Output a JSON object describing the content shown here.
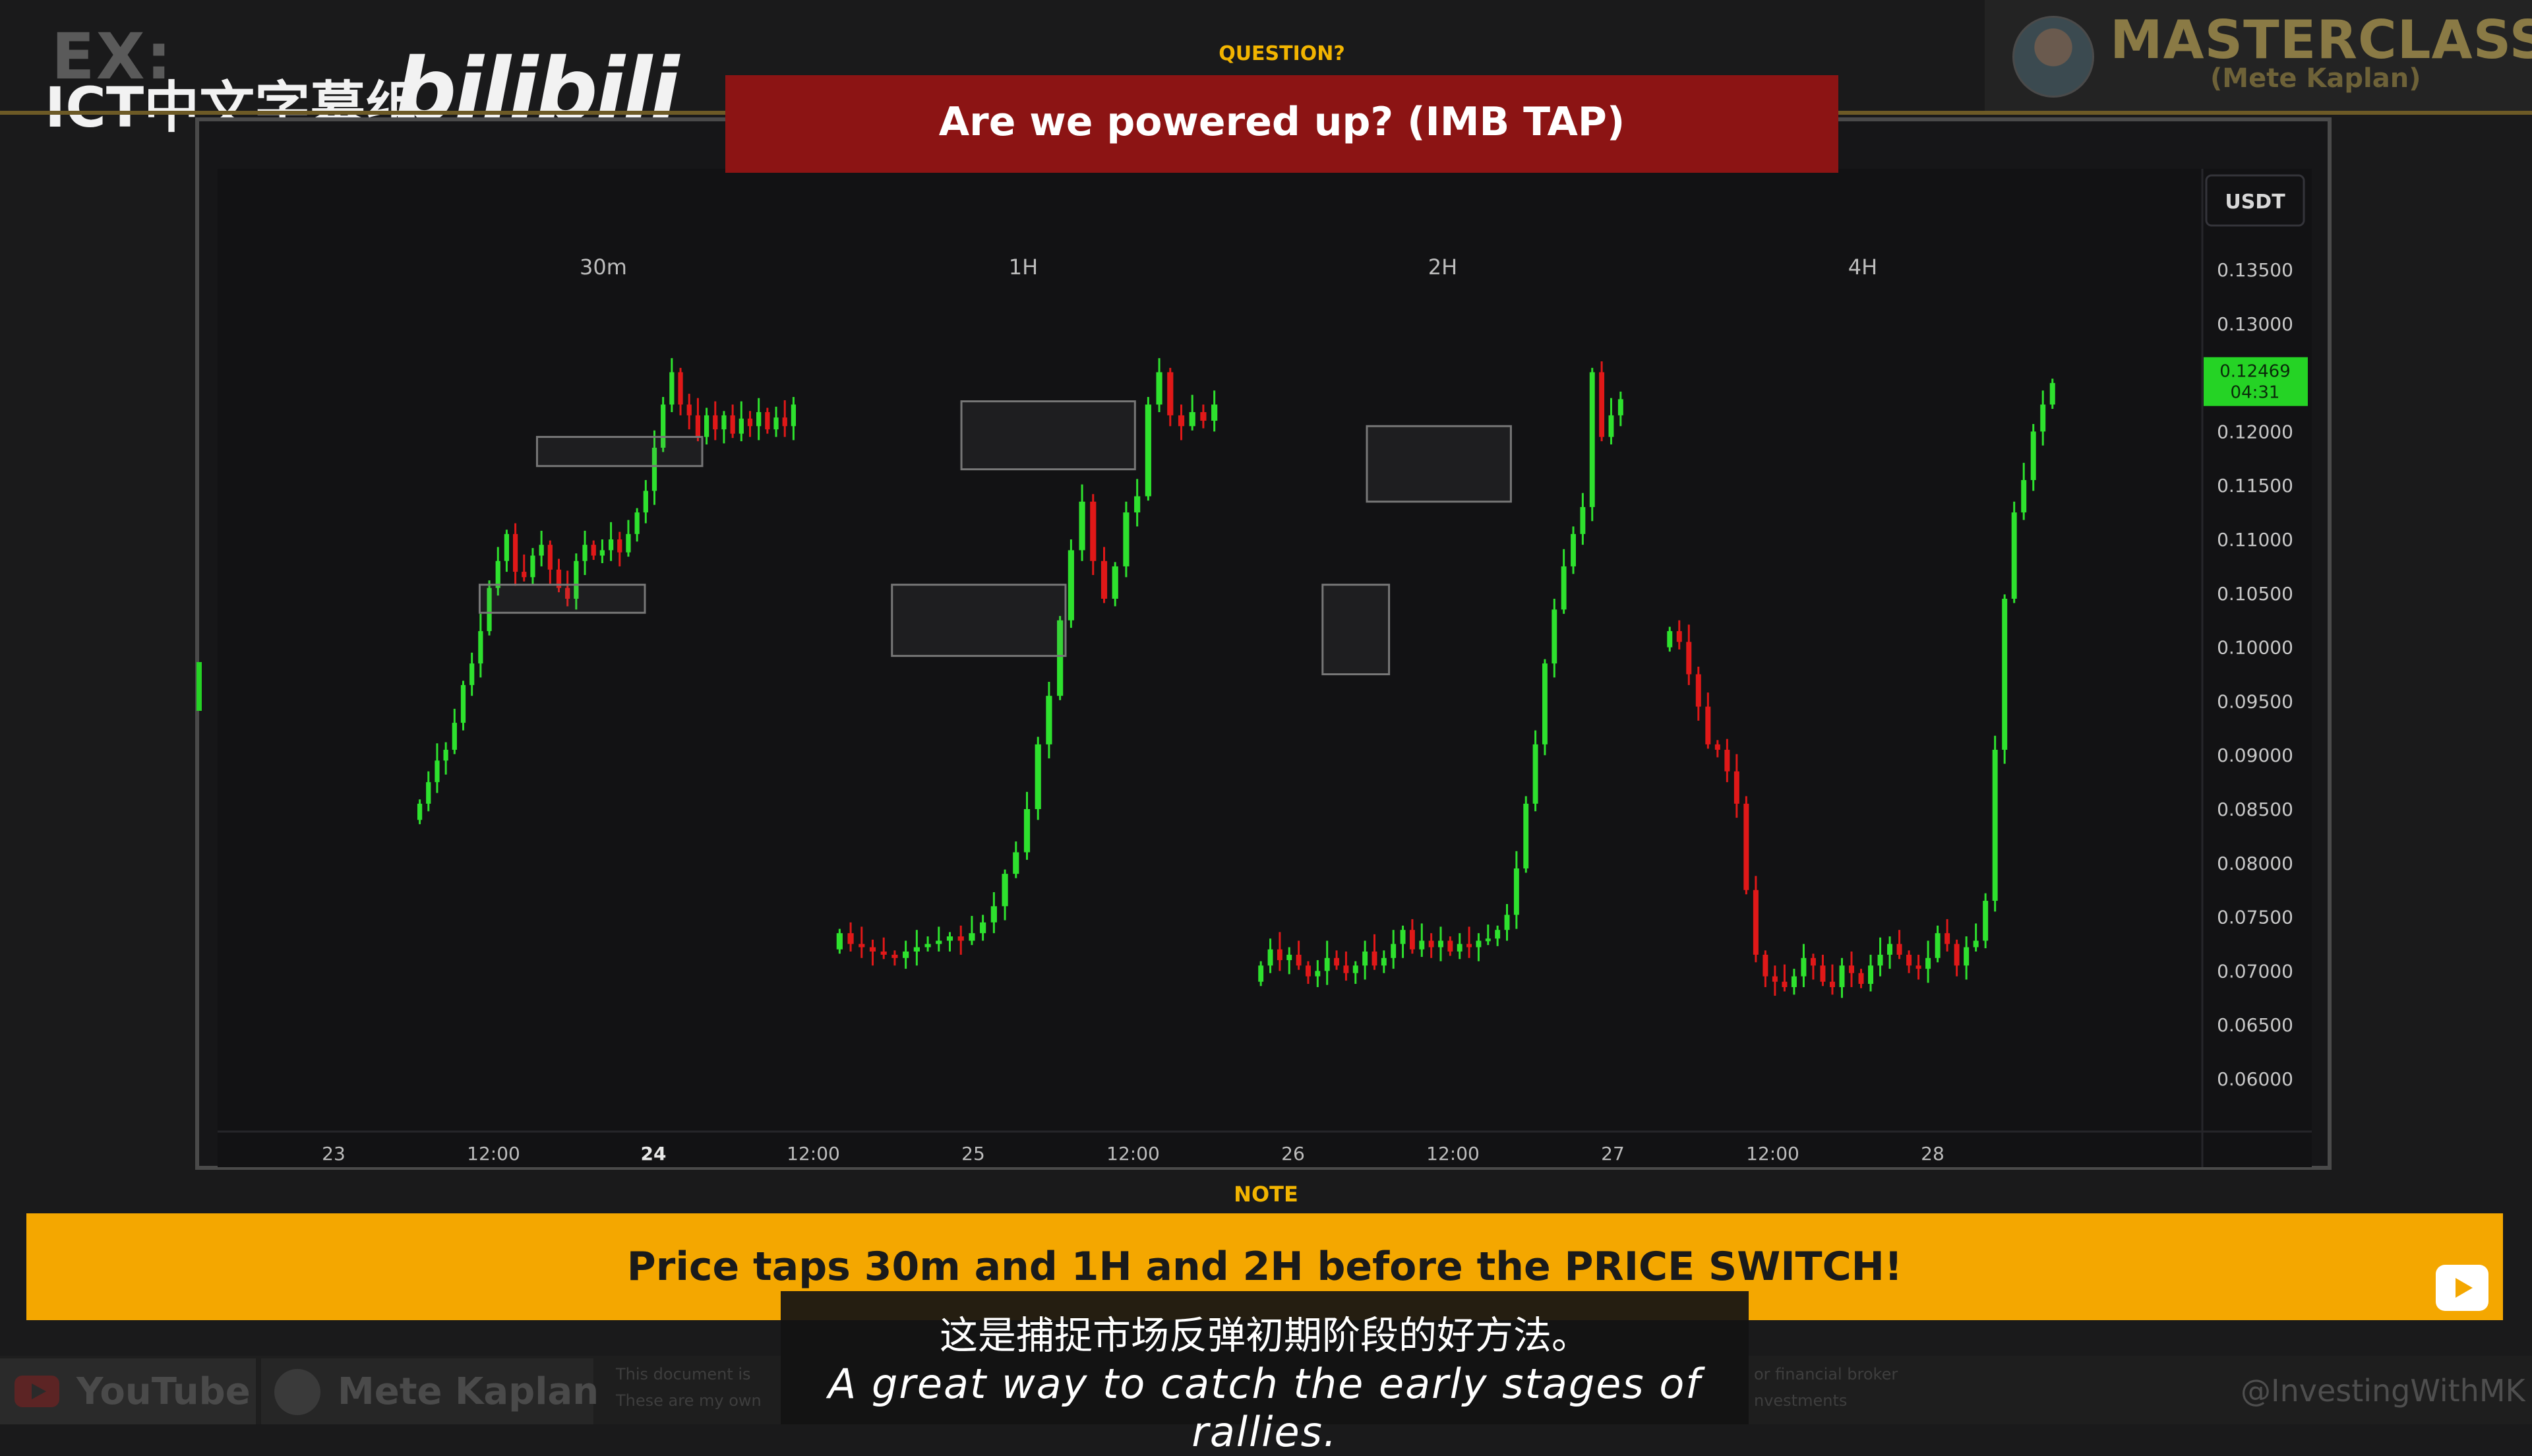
{
  "watermark": {
    "ex": "EX:",
    "group": "ICT中文字幕组",
    "platform": "bilibili"
  },
  "brand": {
    "title": "MASTERCLASS",
    "subtitle": "(Mete Kaplan)"
  },
  "question": {
    "label": "QUESTION?",
    "text": "Are we powered up? (IMB TAP)"
  },
  "note": {
    "label": "NOTE",
    "text": "Price taps 30m and 1H and 2H before the PRICE SWITCH!"
  },
  "subtitles": {
    "zh": "这是捕捉市场反弹初期阶段的好方法。",
    "en": "A great way to catch the early stages of rallies."
  },
  "footer": {
    "youtube": "YouTube",
    "author": "Mete Kaplan",
    "disclaimer_left_1": "This document is",
    "disclaimer_left_2": "These are my own",
    "disclaimer_right_1": "or financial broker",
    "disclaimer_right_2": "nvestments",
    "handle": "@InvestingWithMK"
  },
  "colors": {
    "bull": "#2ee12e",
    "bear": "#e01818",
    "price_tag": "#25d325",
    "accent": "#f4a700",
    "banner": "#8c1414"
  },
  "chart_data": {
    "type": "candlestick",
    "currency": "USDT",
    "panel_labels": [
      "30m",
      "1H",
      "2H",
      "4H"
    ],
    "ylim": [
      0.0575,
      0.1365
    ],
    "y_ticks": [
      "0.13500",
      "0.13000",
      "0.12500",
      "0.12000",
      "0.11500",
      "0.11000",
      "0.10500",
      "0.10000",
      "0.09500",
      "0.09000",
      "0.08500",
      "0.08000",
      "0.07500",
      "0.07000",
      "0.06500",
      "0.06000"
    ],
    "x_ticks": [
      {
        "label": "23",
        "bold": false
      },
      {
        "label": "12:00",
        "bold": false
      },
      {
        "label": "24",
        "bold": true
      },
      {
        "label": "12:00",
        "bold": false
      },
      {
        "label": "25",
        "bold": false
      },
      {
        "label": "12:00",
        "bold": false
      },
      {
        "label": "26",
        "bold": false
      },
      {
        "label": "12:00",
        "bold": false
      },
      {
        "label": "27",
        "bold": false
      },
      {
        "label": "12:00",
        "bold": false
      },
      {
        "label": "28",
        "bold": false
      }
    ],
    "last_price": "0.12469",
    "countdown": "04:31",
    "series": [
      {
        "panel": "30m",
        "closes": [
          0.0855,
          0.0875,
          0.0895,
          0.0905,
          0.093,
          0.0965,
          0.0985,
          0.1015,
          0.1055,
          0.108,
          0.1105,
          0.107,
          0.1065,
          0.1085,
          0.1095,
          0.1072,
          0.1055,
          0.1045,
          0.108,
          0.1095,
          0.1085,
          0.109,
          0.11,
          0.1088,
          0.1105,
          0.1125,
          0.1145,
          0.1185,
          0.1225,
          0.1255,
          0.1225,
          0.1215,
          0.1195,
          0.1215,
          0.1202,
          0.1215,
          0.1198,
          0.1212,
          0.1205,
          0.1218,
          0.1202,
          0.1213,
          0.1205,
          0.1225
        ]
      },
      {
        "panel": "1H",
        "closes": [
          0.0735,
          0.0725,
          0.0722,
          0.0718,
          0.0715,
          0.0712,
          0.0718,
          0.0722,
          0.0725,
          0.0728,
          0.0732,
          0.0728,
          0.0735,
          0.0745,
          0.076,
          0.079,
          0.081,
          0.085,
          0.091,
          0.0955,
          0.1025,
          0.109,
          0.1135,
          0.108,
          0.1045,
          0.1075,
          0.1125,
          0.114,
          0.1225,
          0.1255,
          0.1215,
          0.1205,
          0.1218,
          0.121,
          0.1225
        ]
      },
      {
        "panel": "2H",
        "closes": [
          0.0705,
          0.072,
          0.071,
          0.0715,
          0.0705,
          0.0695,
          0.07,
          0.0712,
          0.0705,
          0.0698,
          0.0705,
          0.0718,
          0.0705,
          0.0712,
          0.0725,
          0.0738,
          0.072,
          0.0728,
          0.0722,
          0.0728,
          0.0718,
          0.0725,
          0.0722,
          0.0728,
          0.073,
          0.0738,
          0.0752,
          0.0795,
          0.0855,
          0.091,
          0.0985,
          0.1035,
          0.1075,
          0.1105,
          0.113,
          0.1255,
          0.1195,
          0.1215,
          0.123
        ]
      },
      {
        "panel": "4H",
        "closes": [
          0.1015,
          0.1005,
          0.0975,
          0.0945,
          0.091,
          0.0905,
          0.0885,
          0.0855,
          0.0775,
          0.0715,
          0.0695,
          0.069,
          0.0685,
          0.0695,
          0.0712,
          0.0705,
          0.069,
          0.0685,
          0.0705,
          0.0698,
          0.0688,
          0.0705,
          0.0715,
          0.0725,
          0.0715,
          0.0705,
          0.0702,
          0.0712,
          0.0735,
          0.0725,
          0.0705,
          0.0722,
          0.0728,
          0.0765,
          0.0905,
          0.1045,
          0.1125,
          0.1155,
          0.12,
          0.1225,
          0.1245
        ]
      }
    ],
    "imbalance_zones": [
      {
        "panel": "30m",
        "y_top": 0.1195,
        "y_bottom": 0.1168,
        "x_span": [
          0.53,
          1.25
        ]
      },
      {
        "panel": "30m",
        "y_top": 0.1058,
        "y_bottom": 0.1032,
        "x_span": [
          0.28,
          1.0
        ]
      },
      {
        "panel": "1H",
        "y_top": 0.1228,
        "y_bottom": 0.1165,
        "x_span": [
          0.55,
          1.3
        ]
      },
      {
        "panel": "1H",
        "y_top": 0.1058,
        "y_bottom": 0.0992,
        "x_span": [
          0.25,
          1.0
        ]
      },
      {
        "panel": "2H",
        "y_top": 0.1205,
        "y_bottom": 0.1135,
        "x_span": [
          0.5,
          1.15
        ]
      },
      {
        "panel": "2H",
        "y_top": 0.1058,
        "y_bottom": 0.0975,
        "x_span": [
          0.3,
          0.6
        ]
      }
    ]
  }
}
